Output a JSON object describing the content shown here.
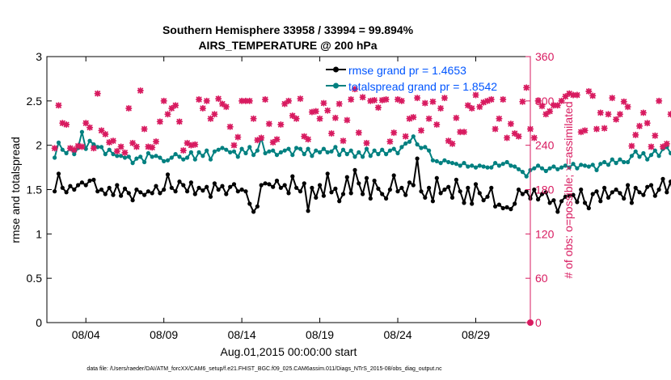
{
  "chart_data": {
    "type": "line",
    "title": [
      "Southern Hemisphere 33958 / 33994 = 99.894%",
      "AIRS_TEMPERATURE @ 200 hPa"
    ],
    "xlabel": "Aug.01,2015 00:00:00 start",
    "ylabel_left": "rmse and totalspread",
    "ylabel_right": "# of obs: o=possible; ×=assimilated",
    "footer": "data file: /Users/raeder/DAI/ATM_forcXX/CAM6_setup/f.e21.FHIST_BGC.f09_025.CAM6assim.011/Diags_NTrS_2015-08/obs_diag_output.nc",
    "xlim": [
      0.5,
      31.5
    ],
    "x_ticks": [
      3,
      8,
      13,
      18,
      23,
      28
    ],
    "x_tick_labels": [
      "08/04",
      "08/09",
      "08/14",
      "08/19",
      "08/24",
      "08/29"
    ],
    "ylim_left": [
      0,
      3
    ],
    "y_ticks_left": [
      "0",
      "0.5",
      "1",
      "1.5",
      "2",
      "2.5",
      "3"
    ],
    "ylim_right": [
      0,
      360
    ],
    "y_ticks_right": [
      "0",
      "60",
      "120",
      "180",
      "240",
      "300",
      "360"
    ],
    "grid": false,
    "legend_position": "top-right",
    "colors": {
      "rmse": "#000000",
      "spread": "#008080",
      "obs": "#d81b60",
      "right_axis": "#d81b60",
      "legend_text": "#0055ff"
    },
    "legend": [
      "rmse grand pr = 1.4653",
      "totalspread grand pr = 1.8542"
    ],
    "series": [
      {
        "name": "rmse grand pr = 1.4653",
        "axis": "left",
        "x_start": 1,
        "x_step": 0.25,
        "values": [
          1.48,
          1.68,
          1.52,
          1.47,
          1.54,
          1.5,
          1.55,
          1.58,
          1.55,
          1.6,
          1.61,
          1.48,
          1.5,
          1.45,
          1.52,
          1.44,
          1.55,
          1.43,
          1.51,
          1.46,
          1.38,
          1.5,
          1.47,
          1.44,
          1.48,
          1.46,
          1.54,
          1.46,
          1.5,
          1.67,
          1.52,
          1.48,
          1.59,
          1.55,
          1.48,
          1.58,
          1.45,
          1.52,
          1.49,
          1.53,
          1.42,
          1.57,
          1.5,
          1.54,
          1.45,
          1.53,
          1.56,
          1.48,
          1.5,
          1.48,
          1.34,
          1.25,
          1.31,
          1.55,
          1.57,
          1.56,
          1.53,
          1.6,
          1.52,
          1.55,
          1.46,
          1.65,
          1.52,
          1.48,
          1.57,
          1.26,
          1.52,
          1.41,
          1.55,
          1.43,
          1.68,
          1.47,
          1.51,
          1.37,
          1.45,
          1.64,
          1.46,
          1.72,
          1.57,
          1.45,
          1.63,
          1.4,
          1.6,
          1.51,
          1.45,
          1.4,
          1.5,
          1.66,
          1.48,
          1.52,
          1.44,
          1.58,
          1.55,
          1.85,
          1.48,
          1.41,
          1.52,
          1.37,
          1.63,
          1.46,
          1.5,
          1.53,
          1.41,
          1.61,
          1.48,
          1.35,
          1.52,
          1.34,
          1.56,
          1.46,
          1.38,
          1.42,
          1.52,
          1.31,
          1.33,
          1.29,
          1.3,
          1.28,
          1.34,
          1.5,
          1.45,
          1.48,
          1.4,
          1.5,
          1.39,
          1.45,
          1.47,
          1.35,
          1.38,
          1.25,
          1.37,
          1.42,
          1.43,
          1.44,
          1.36,
          1.5,
          1.35,
          1.29,
          1.45,
          1.48,
          1.37,
          1.52,
          1.41,
          1.47,
          1.5,
          1.46,
          1.4,
          1.55,
          1.35,
          1.52,
          1.47,
          1.44,
          1.53,
          1.55,
          1.43,
          1.5,
          1.62,
          1.47,
          1.59,
          1.38,
          1.6,
          1.43,
          1.41,
          1.62,
          1.47,
          1.28,
          1.31,
          1.4,
          1.28,
          1.43,
          1.39,
          1.46,
          1.45
        ],
        "marker": "filled-circle"
      },
      {
        "name": "totalspread grand pr = 1.8542",
        "axis": "left",
        "x_start": 1,
        "x_step": 0.25,
        "values": [
          1.86,
          2.03,
          1.95,
          1.91,
          1.97,
          1.9,
          1.97,
          2.15,
          1.96,
          2.05,
          2.01,
          1.98,
          1.98,
          1.9,
          1.95,
          1.9,
          1.88,
          1.88,
          1.86,
          1.87,
          1.8,
          1.85,
          1.87,
          1.81,
          1.91,
          1.87,
          1.88,
          1.86,
          1.82,
          1.83,
          1.86,
          1.9,
          1.87,
          1.84,
          1.86,
          1.92,
          1.84,
          1.92,
          1.88,
          1.94,
          1.84,
          1.93,
          1.95,
          1.97,
          1.95,
          1.92,
          1.93,
          1.87,
          1.96,
          1.91,
          1.98,
          1.89,
          1.94,
          2.08,
          1.91,
          1.93,
          1.94,
          1.89,
          1.92,
          1.94,
          1.96,
          1.89,
          1.97,
          1.96,
          1.9,
          1.96,
          1.88,
          1.94,
          1.92,
          1.96,
          1.92,
          1.93,
          1.98,
          1.89,
          1.95,
          1.9,
          1.94,
          1.87,
          1.92,
          1.87,
          1.96,
          1.88,
          1.94,
          1.9,
          1.95,
          1.9,
          1.94,
          1.96,
          1.91,
          1.98,
          2.02,
          2.04,
          2.1,
          2.01,
          1.97,
          1.98,
          1.94,
          1.83,
          1.82,
          1.8,
          1.83,
          1.81,
          1.8,
          1.79,
          1.77,
          1.8,
          1.76,
          1.77,
          1.75,
          1.77,
          1.76,
          1.75,
          1.75,
          1.8,
          1.77,
          1.79,
          1.81,
          1.77,
          1.76,
          1.73,
          1.7,
          1.65,
          1.72,
          1.74,
          1.77,
          1.74,
          1.71,
          1.74,
          1.76,
          1.73,
          1.75,
          1.77,
          1.75,
          1.79,
          1.74,
          1.78,
          1.77,
          1.76,
          1.78,
          1.72,
          1.79,
          1.81,
          1.78,
          1.84,
          1.8,
          1.84,
          1.81,
          1.81,
          1.88,
          1.93,
          1.87,
          1.91,
          1.84,
          1.89,
          1.94,
          1.88,
          1.96,
          1.98,
          1.91,
          1.96,
          1.99,
          1.97,
          2.07,
          2.01,
          1.99,
          2.03,
          1.91,
          2.09,
          2.03,
          2.22,
          2.12,
          2.04,
          1.98,
          2.03,
          1.92,
          1.91,
          1.8,
          1.74,
          1.74,
          1.73,
          1.73,
          1.74,
          1.75,
          1.75,
          1.77,
          1.76
        ],
        "marker": "filled-circle"
      },
      {
        "name": "",
        "axis": "right",
        "x_start": 1,
        "x_step": 0.25,
        "values": [
          236,
          294,
          270,
          268,
          236,
          234,
          239,
          238,
          270,
          264,
          236,
          310,
          260,
          255,
          244,
          246,
          232,
          238,
          230,
          290,
          243,
          238,
          314,
          262,
          238,
          237,
          245,
          272,
          300,
          282,
          290,
          294,
          272,
          233,
          243,
          240,
          241,
          302,
          290,
          300,
          276,
          282,
          303,
          296,
          292,
          265,
          240,
          251,
          300,
          300,
          300,
          276,
          247,
          250,
          302,
          269,
          244,
          248,
          268,
          296,
          300,
          280,
          276,
          303,
          252,
          248,
          285,
          286,
          276,
          297,
          287,
          256,
          277,
          296,
          246,
          274,
          302,
          316,
          257,
          305,
          243,
          300,
          301,
          291,
          301,
          302,
          245,
          257,
          302,
          300,
          252,
          276,
          278,
          304,
          260,
          297,
          276,
          299,
          268,
          290,
          304,
          246,
          242,
          277,
          258,
          258,
          294,
          290,
          308,
          292,
          298,
          300,
          302,
          262,
          276,
          302,
          250,
          269,
          256,
          252,
          299,
          318,
          262,
          250,
          300,
          293,
          282,
          286,
          294,
          294,
          300,
          306,
          310,
          308,
          308,
          258,
          260,
          313,
          307,
          262,
          284,
          263,
          282,
          304,
          275,
          282,
          299,
          292,
          239,
          254,
          266,
          284,
          270,
          238,
          253,
          300,
          238,
          242,
          282,
          290,
          295,
          310,
          304,
          290,
          257,
          278,
          260,
          262,
          245,
          244,
          230,
          278,
          244,
          248,
          236,
          300,
          266,
          300,
          243,
          234,
          218,
          262,
          231,
          242,
          298,
          240
        ],
        "marker": "plus-cross"
      }
    ]
  }
}
